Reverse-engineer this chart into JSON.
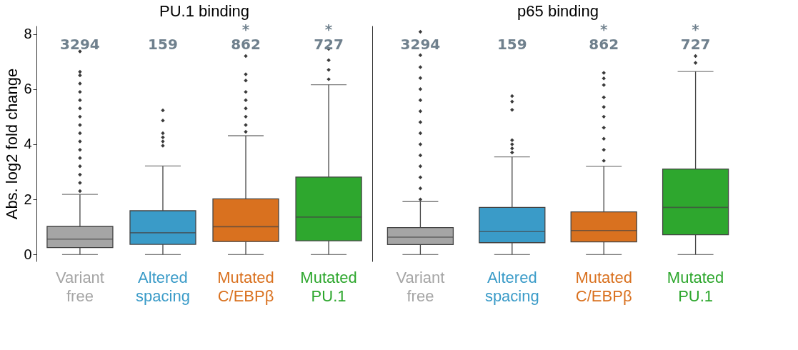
{
  "chart_data": [
    {
      "type": "box",
      "title": "PU.1 binding",
      "ylabel": "Abs. log2 fold change",
      "categories": [
        "Variant free",
        "Altered spacing",
        "Mutated C/EBPβ",
        "Mutated PU.1"
      ],
      "colors": [
        "#a5a5a5",
        "#3a9bc8",
        "#d9711f",
        "#2ea72e"
      ],
      "boxes": [
        {
          "low": 0,
          "q1": 0.25,
          "median": 0.56,
          "q3": 1.02,
          "high": 2.18,
          "outliers": [
            2.3,
            2.6,
            2.9,
            3.2,
            3.5,
            3.8,
            4.1,
            4.4,
            4.7,
            5.0,
            5.3,
            5.6,
            5.9,
            6.2,
            6.5,
            6.63,
            7.37
          ]
        },
        {
          "low": 0,
          "q1": 0.37,
          "median": 0.79,
          "q3": 1.59,
          "high": 3.21,
          "outliers": [
            3.95,
            4.1,
            4.25,
            4.4,
            4.86,
            5.23
          ]
        },
        {
          "low": 0,
          "q1": 0.47,
          "median": 1.01,
          "q3": 2.02,
          "high": 4.31,
          "outliers": [
            4.45,
            4.7,
            5.0,
            5.3,
            5.6,
            5.9,
            6.31,
            6.54,
            7.2
          ]
        },
        {
          "low": 0,
          "q1": 0.5,
          "median": 1.36,
          "q3": 2.81,
          "high": 6.16,
          "outliers": [
            6.36,
            6.7,
            7.05,
            7.46
          ]
        }
      ],
      "ylim": [
        -0.25,
        8.3
      ],
      "yticks": [
        0,
        2,
        4,
        6,
        8
      ],
      "grid": false,
      "annotations": [
        "3294",
        "159",
        "862",
        "727",
        "*",
        "*"
      ]
    },
    {
      "type": "box",
      "title": "p65 binding",
      "categories": [
        "Variant free",
        "Altered spacing",
        "Mutated C/EBPβ",
        "Mutated PU.1"
      ],
      "colors": [
        "#a5a5a5",
        "#3a9bc8",
        "#d9711f",
        "#2ea72e"
      ],
      "boxes": [
        {
          "low": 0,
          "q1": 0.36,
          "median": 0.63,
          "q3": 0.98,
          "high": 1.92,
          "outliers": [
            2.0,
            2.4,
            2.8,
            3.2,
            3.6,
            4.0,
            4.4,
            4.8,
            5.2,
            5.6,
            6.0,
            6.4,
            6.8,
            7.23,
            8.08
          ]
        },
        {
          "low": 0,
          "q1": 0.43,
          "median": 0.83,
          "q3": 1.71,
          "high": 3.54,
          "outliers": [
            3.7,
            3.85,
            4.0,
            4.15,
            5.25,
            5.55,
            5.75
          ]
        },
        {
          "low": 0,
          "q1": 0.46,
          "median": 0.87,
          "q3": 1.55,
          "high": 3.2,
          "outliers": [
            3.4,
            3.8,
            4.2,
            4.6,
            5.0,
            5.35,
            5.7,
            6.15,
            6.39,
            6.59
          ]
        },
        {
          "low": 0,
          "q1": 0.72,
          "median": 1.71,
          "q3": 3.1,
          "high": 6.64,
          "outliers": [
            6.95,
            7.2
          ]
        }
      ],
      "ylim": [
        -0.25,
        8.3
      ],
      "yticks": [
        0,
        2,
        4,
        6,
        8
      ],
      "grid": false,
      "tick_labels": "x",
      "annotations": [
        "3294",
        "159",
        "862",
        "727",
        "*",
        "*"
      ]
    }
  ]
}
